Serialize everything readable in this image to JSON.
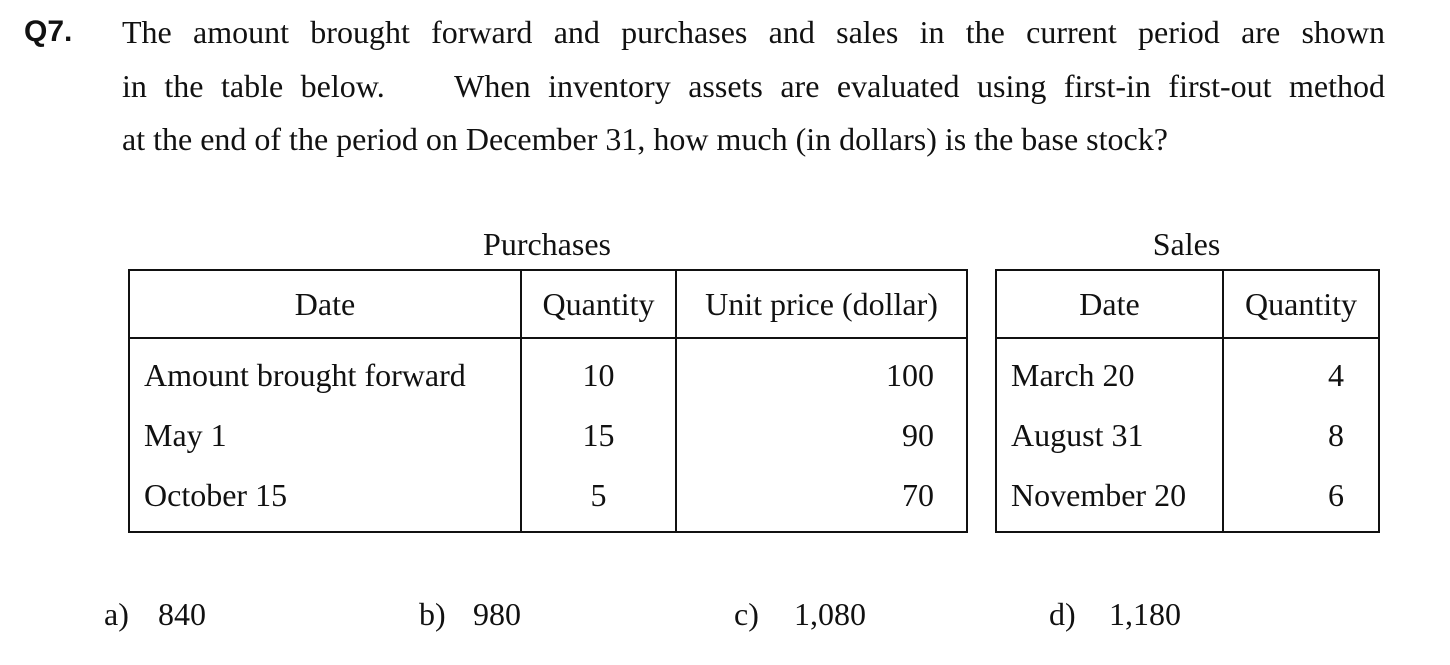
{
  "question": {
    "number": "Q7.",
    "lines": [
      "The amount brought forward and purchases and sales in the current period are shown",
      "in the table below.    When inventory assets are evaluated using first-in first-out method",
      "at the end of the period on December 31, how much (in dollars) is the base stock?"
    ]
  },
  "purchases": {
    "caption": "Purchases",
    "headers": [
      "Date",
      "Quantity",
      "Unit price (dollar)"
    ],
    "rows": [
      {
        "date": "Amount brought forward",
        "quantity": "10",
        "unit_price": "100"
      },
      {
        "date": "May 1",
        "quantity": "15",
        "unit_price": "90"
      },
      {
        "date": "October 15",
        "quantity": "5",
        "unit_price": "70"
      }
    ]
  },
  "sales": {
    "caption": "Sales",
    "headers": [
      "Date",
      "Quantity"
    ],
    "rows": [
      {
        "date": "March 20",
        "quantity": "4"
      },
      {
        "date": "August 31",
        "quantity": "8"
      },
      {
        "date": "November 20",
        "quantity": "6"
      }
    ]
  },
  "answers": [
    {
      "letter": "a)",
      "value": "840"
    },
    {
      "letter": "b)",
      "value": "980"
    },
    {
      "letter": "c)",
      "value": "1,080"
    },
    {
      "letter": "d)",
      "value": "1,180"
    }
  ]
}
